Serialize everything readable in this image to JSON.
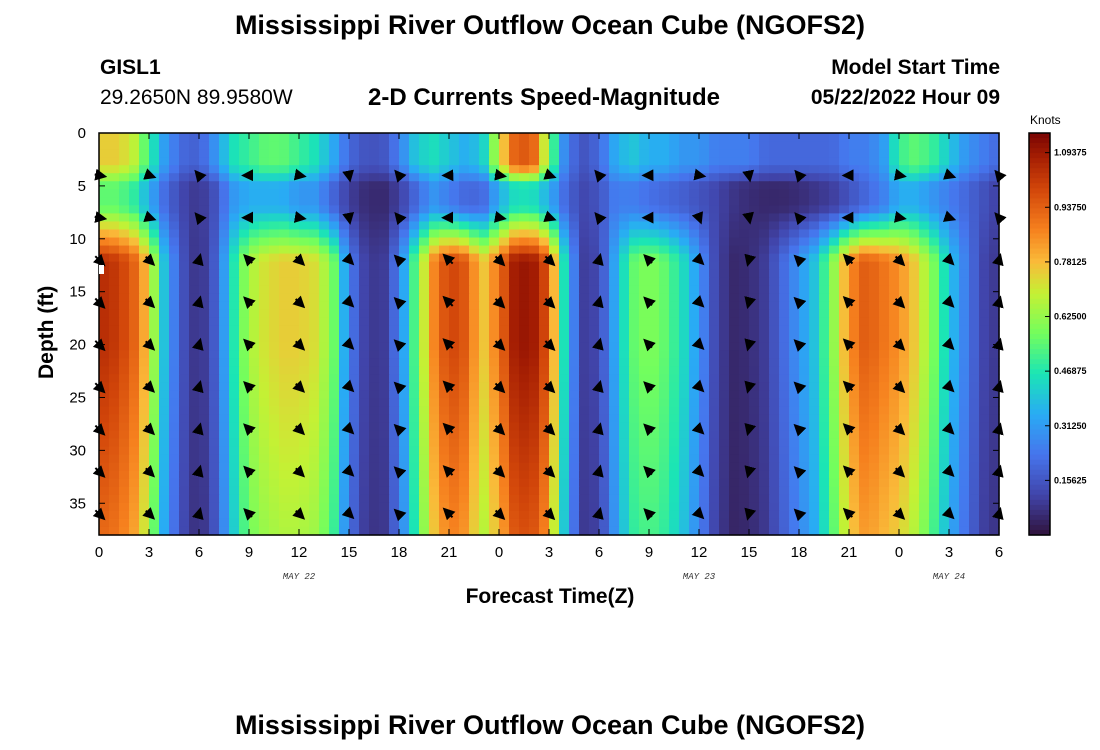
{
  "title": "Mississippi River Outflow Ocean Cube (NGOFS2)",
  "station": {
    "id": "GISL1",
    "coords": "29.2650N  89.9580W"
  },
  "subtitle": "2-D Currents Speed-Magnitude",
  "model_start": {
    "label": "Model Start Time",
    "value": "05/22/2022 Hour 09"
  },
  "second_panel_title": "Mississippi River Outflow Ocean Cube (NGOFS2)",
  "chart_data": {
    "type": "heatmap",
    "title": "2-D Currents Speed-Magnitude",
    "xlabel": "Forecast Time(Z)",
    "ylabel": "Depth (ft)",
    "x_range_hours": [
      0,
      54
    ],
    "y_range_ft": [
      0,
      38
    ],
    "x_tick_labels": [
      "0",
      "3",
      "6",
      "9",
      "12",
      "15",
      "18",
      "21",
      "0",
      "3",
      "6",
      "9",
      "12",
      "15",
      "18",
      "21",
      "0",
      "3",
      "6"
    ],
    "y_tick_labels": [
      "0",
      "5",
      "10",
      "15",
      "20",
      "25",
      "30",
      "35"
    ],
    "date_labels": [
      {
        "text": "MAY 22",
        "hour": 12
      },
      {
        "text": "MAY 23",
        "hour": 36
      },
      {
        "text": "MAY 24",
        "hour": 51
      }
    ],
    "colorbar": {
      "title": "Knots",
      "min": 0,
      "max": 1.15,
      "tick_labels": [
        "1.09375",
        "0.93750",
        "0.78125",
        "0.62500",
        "0.46875",
        "0.31250",
        "0.15625"
      ],
      "tick_values": [
        1.09375,
        0.9375,
        0.78125,
        0.625,
        0.46875,
        0.3125,
        0.15625
      ]
    },
    "speed_profile": {
      "hours": [
        0,
        1,
        2,
        3,
        4,
        5,
        6,
        7,
        8,
        9,
        10,
        11,
        12,
        13,
        14,
        15,
        16,
        17,
        18,
        19,
        20,
        21,
        22,
        23,
        24,
        25,
        26,
        27,
        28,
        29,
        30,
        31,
        32,
        33,
        34,
        35,
        36,
        37,
        38,
        39,
        40,
        41,
        42,
        43,
        44,
        45,
        46,
        47,
        48,
        49,
        50,
        51,
        52,
        53,
        54
      ],
      "upper_0_3ft": [
        0.75,
        0.75,
        0.7,
        0.5,
        0.3,
        0.2,
        0.18,
        0.3,
        0.45,
        0.5,
        0.55,
        0.55,
        0.5,
        0.45,
        0.35,
        0.2,
        0.15,
        0.15,
        0.25,
        0.4,
        0.45,
        0.4,
        0.35,
        0.4,
        0.7,
        0.95,
        0.95,
        0.6,
        0.25,
        0.15,
        0.2,
        0.35,
        0.4,
        0.35,
        0.35,
        0.3,
        0.3,
        0.25,
        0.25,
        0.25,
        0.2,
        0.2,
        0.2,
        0.2,
        0.2,
        0.25,
        0.25,
        0.3,
        0.5,
        0.55,
        0.5,
        0.4,
        0.3,
        0.25,
        0.2
      ],
      "mid_4_7ft": [
        0.55,
        0.55,
        0.5,
        0.35,
        0.2,
        0.12,
        0.08,
        0.15,
        0.3,
        0.35,
        0.35,
        0.35,
        0.3,
        0.3,
        0.2,
        0.1,
        0.06,
        0.05,
        0.1,
        0.2,
        0.3,
        0.25,
        0.2,
        0.2,
        0.35,
        0.45,
        0.45,
        0.35,
        0.2,
        0.12,
        0.15,
        0.25,
        0.25,
        0.22,
        0.2,
        0.18,
        0.15,
        0.12,
        0.08,
        0.06,
        0.05,
        0.05,
        0.06,
        0.08,
        0.1,
        0.15,
        0.2,
        0.25,
        0.35,
        0.35,
        0.3,
        0.25,
        0.2,
        0.15,
        0.1
      ],
      "lower_12_38ft": [
        1.05,
        1.02,
        0.95,
        0.75,
        0.35,
        0.15,
        0.06,
        0.18,
        0.45,
        0.65,
        0.72,
        0.75,
        0.75,
        0.72,
        0.6,
        0.25,
        0.1,
        0.08,
        0.25,
        0.55,
        0.85,
        1.0,
        0.95,
        0.75,
        0.9,
        1.1,
        1.1,
        0.95,
        0.4,
        0.1,
        0.12,
        0.35,
        0.55,
        0.6,
        0.55,
        0.45,
        0.3,
        0.12,
        0.05,
        0.06,
        0.1,
        0.2,
        0.3,
        0.4,
        0.6,
        0.85,
        0.95,
        0.9,
        0.85,
        0.75,
        0.6,
        0.4,
        0.25,
        0.12,
        0.08
      ]
    },
    "arrow_depths_ft": [
      4,
      8,
      12,
      16,
      20,
      24,
      28,
      32,
      36
    ],
    "arrow_hours": [
      0,
      3,
      6,
      9,
      12,
      15,
      18,
      21,
      24,
      27,
      30,
      33,
      36,
      39,
      42,
      45,
      48,
      51,
      54
    ]
  }
}
